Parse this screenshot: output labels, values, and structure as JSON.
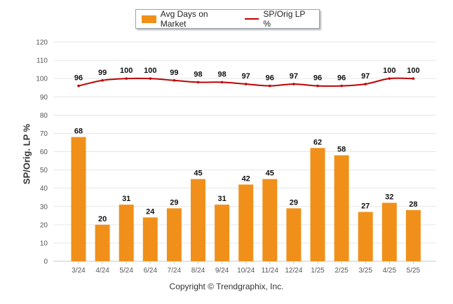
{
  "legend": {
    "bar_label": "Avg Days on Market",
    "line_label": "SP/Orig LP %"
  },
  "footer": "Copyright © Trendgraphix, Inc.",
  "colors": {
    "bar": "#f0901a",
    "line": "#c00000",
    "grid": "#e6e6e6",
    "axis_text": "#555555"
  },
  "chart_data": {
    "type": "bar",
    "title": "",
    "xlabel": "",
    "ylabel": "SP/Orig. LP %",
    "ylim": [
      0,
      120
    ],
    "yticks": [
      0,
      10,
      20,
      30,
      40,
      50,
      60,
      70,
      80,
      90,
      100,
      110,
      120
    ],
    "grid": true,
    "legend_position": "top-center",
    "categories": [
      "3/24",
      "4/24",
      "5/24",
      "6/24",
      "7/24",
      "8/24",
      "9/24",
      "10/24",
      "11/24",
      "12/24",
      "1/25",
      "2/25",
      "3/25",
      "4/25",
      "5/25"
    ],
    "series": [
      {
        "name": "Avg Days on Market",
        "kind": "bar",
        "values": [
          68,
          20,
          31,
          24,
          29,
          45,
          31,
          42,
          45,
          29,
          62,
          58,
          27,
          32,
          28
        ]
      },
      {
        "name": "SP/Orig LP %",
        "kind": "line",
        "values": [
          96,
          99,
          100,
          100,
          99,
          98,
          98,
          97,
          96,
          97,
          96,
          96,
          97,
          100,
          100
        ]
      }
    ]
  }
}
